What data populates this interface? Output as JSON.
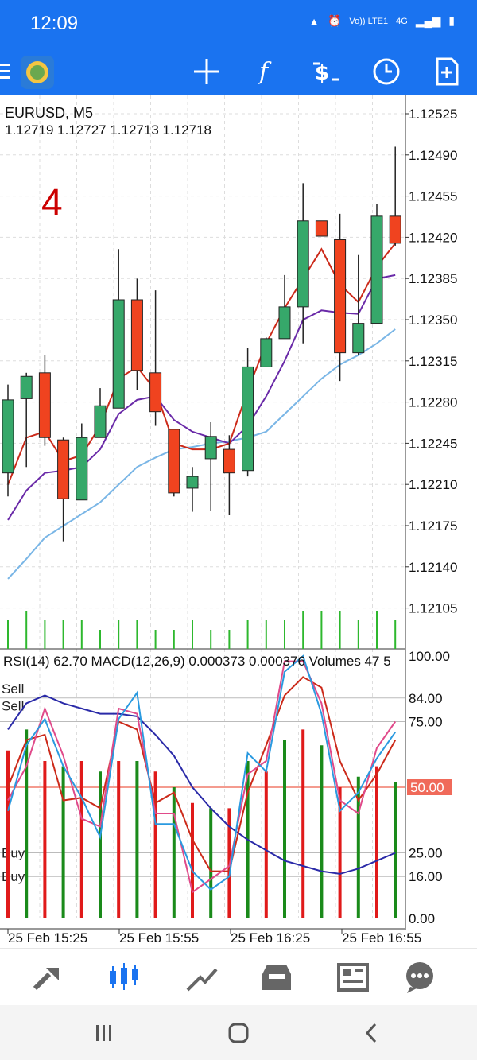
{
  "status_bar": {
    "time": "12:09",
    "network": "Vo)) LTE1",
    "network_type": "4G"
  },
  "toolbar": {
    "icons": [
      "menu-icon",
      "metatrader-logo",
      "crosshair-icon",
      "indicators-icon",
      "trade-icon",
      "timeframe-icon",
      "add-object-icon"
    ]
  },
  "chart": {
    "symbol_line": "EURUSD, M5",
    "ohlc": "1.12719 1.12727 1.12713 1.12718",
    "annotation": "4",
    "price_ticks": [
      "1.12525",
      "1.12490",
      "1.12455",
      "1.12420",
      "1.12385",
      "1.12350",
      "1.12315",
      "1.12280",
      "1.12245",
      "1.12210",
      "1.12175",
      "1.12140",
      "1.12105"
    ],
    "time_ticks": [
      "25 Feb 15:25",
      "25 Feb 15:55",
      "25 Feb 16:25",
      "25 Feb 16:55"
    ],
    "indicator_line": "RSI(14) 62.70 MACD(12,26,9) 0.000373 0.000376 Volumes 47 5",
    "indicator_ticks": [
      "100.00",
      "84.00",
      "75.00",
      "50.00",
      "25.00",
      "16.00",
      "0.00"
    ],
    "level_labels": [
      "Sell",
      "Sell",
      "Buy",
      "Buy"
    ]
  },
  "chart_data": {
    "type": "candlestick",
    "y_range": [
      1.1209,
      1.1255
    ],
    "candles": [
      {
        "o": 1.1222,
        "h": 1.12295,
        "l": 1.122,
        "c": 1.12282
      },
      {
        "o": 1.12283,
        "h": 1.12305,
        "l": 1.12225,
        "c": 1.12302
      },
      {
        "o": 1.12305,
        "h": 1.1232,
        "l": 1.12243,
        "c": 1.1225
      },
      {
        "o": 1.12248,
        "h": 1.1225,
        "l": 1.12162,
        "c": 1.12198
      },
      {
        "o": 1.12197,
        "h": 1.12262,
        "l": 1.12197,
        "c": 1.1225
      },
      {
        "o": 1.1225,
        "h": 1.12292,
        "l": 1.1225,
        "c": 1.12277
      },
      {
        "o": 1.12275,
        "h": 1.1241,
        "l": 1.12275,
        "c": 1.12367
      },
      {
        "o": 1.12367,
        "h": 1.12385,
        "l": 1.1229,
        "c": 1.12307
      },
      {
        "o": 1.12305,
        "h": 1.12375,
        "l": 1.1226,
        "c": 1.12272
      },
      {
        "o": 1.12257,
        "h": 1.12257,
        "l": 1.122,
        "c": 1.12203
      },
      {
        "o": 1.12207,
        "h": 1.12225,
        "l": 1.12187,
        "c": 1.12217
      },
      {
        "o": 1.12232,
        "h": 1.12263,
        "l": 1.12188,
        "c": 1.12251
      },
      {
        "o": 1.1224,
        "h": 1.12252,
        "l": 1.12184,
        "c": 1.1222
      },
      {
        "o": 1.12222,
        "h": 1.12326,
        "l": 1.12217,
        "c": 1.1231
      },
      {
        "o": 1.1231,
        "h": 1.12335,
        "l": 1.1231,
        "c": 1.12334
      },
      {
        "o": 1.12334,
        "h": 1.12388,
        "l": 1.12334,
        "c": 1.12361
      },
      {
        "o": 1.12361,
        "h": 1.12466,
        "l": 1.1233,
        "c": 1.12434
      },
      {
        "o": 1.12434,
        "h": 1.12434,
        "l": 1.12421,
        "c": 1.12421
      },
      {
        "o": 1.12418,
        "h": 1.1244,
        "l": 1.12298,
        "c": 1.12322
      },
      {
        "o": 1.12322,
        "h": 1.12405,
        "l": 1.1232,
        "c": 1.12347
      },
      {
        "o": 1.12347,
        "h": 1.12448,
        "l": 1.12347,
        "c": 1.12438
      },
      {
        "o": 1.12438,
        "h": 1.12497,
        "l": 1.12413,
        "c": 1.12415
      }
    ],
    "ma_fast": [
      1.1221,
      1.1225,
      1.12255,
      1.1223,
      1.12235,
      1.1226,
      1.123,
      1.1231,
      1.1229,
      1.12245,
      1.1224,
      1.1224,
      1.12245,
      1.1229,
      1.1233,
      1.1236,
      1.12385,
      1.1241,
      1.1238,
      1.12365,
      1.12395,
      1.12415
    ],
    "ma_mid": [
      1.1218,
      1.12205,
      1.1222,
      1.12222,
      1.12225,
      1.1224,
      1.1227,
      1.12282,
      1.12285,
      1.12265,
      1.12255,
      1.1225,
      1.12245,
      1.1226,
      1.12285,
      1.12315,
      1.1235,
      1.12358,
      1.12356,
      1.12355,
      1.12385,
      1.12388
    ],
    "ma_slow": [
      1.1213,
      1.12147,
      1.12165,
      1.12175,
      1.12185,
      1.12195,
      1.1221,
      1.12225,
      1.12233,
      1.1224,
      1.12242,
      1.12245,
      1.12247,
      1.1225,
      1.12255,
      1.1227,
      1.12285,
      1.123,
      1.12312,
      1.1232,
      1.1233,
      1.12342
    ],
    "volume": [
      3,
      4,
      3,
      3,
      3,
      2,
      3,
      3,
      2,
      2,
      3,
      2,
      2,
      3,
      3,
      3,
      4,
      4,
      4,
      3,
      4,
      3
    ],
    "macd_hist": [
      64,
      72,
      60,
      58,
      60,
      56,
      60,
      60,
      56,
      50,
      44,
      42,
      42,
      60,
      56,
      68,
      72,
      66,
      50,
      54,
      58,
      52
    ],
    "rsi": [
      50,
      68,
      70,
      45,
      46,
      42,
      75,
      72,
      44,
      48,
      30,
      18,
      18,
      48,
      66,
      85,
      92,
      88,
      60,
      45,
      55,
      68
    ],
    "rsi_fast": [
      45,
      58,
      80,
      62,
      38,
      35,
      80,
      78,
      40,
      40,
      10,
      15,
      20,
      55,
      60,
      98,
      98,
      82,
      45,
      40,
      65,
      75
    ],
    "slow_line": [
      72,
      82,
      85,
      82,
      80,
      78,
      78,
      77,
      70,
      62,
      50,
      42,
      35,
      30,
      26,
      22,
      20,
      18,
      17,
      19,
      22,
      25
    ]
  }
}
